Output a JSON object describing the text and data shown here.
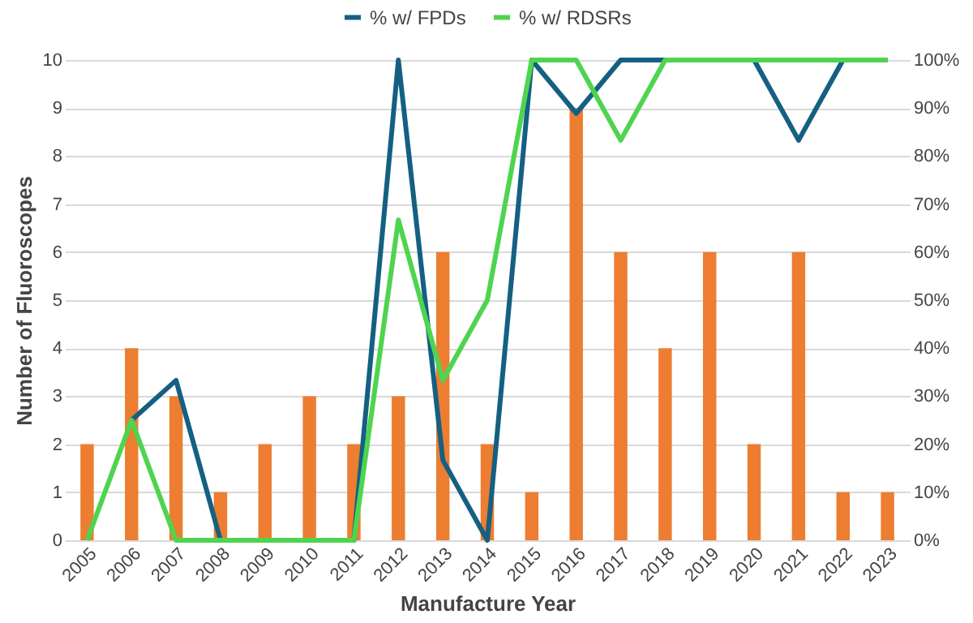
{
  "chart_data": {
    "type": "bar",
    "xlabel": "Manufacture Year",
    "ylabel": "Number of Fluoroscopes",
    "categories": [
      "2005",
      "2006",
      "2007",
      "2008",
      "2009",
      "2010",
      "2011",
      "2012",
      "2013",
      "2014",
      "2015",
      "2016",
      "2017",
      "2018",
      "2019",
      "2020",
      "2021",
      "2022",
      "2023"
    ],
    "series": [
      {
        "color": "#ed7d31",
        "values": [
          2,
          4,
          3,
          1,
          2,
          3,
          2,
          3,
          6,
          2,
          1,
          9,
          6,
          4,
          6,
          2,
          6,
          1,
          1
        ]
      },
      {
        "name": "% w/ FPDs",
        "type": "line",
        "axis": "y2",
        "color": "#156082",
        "values": [
          null,
          25,
          33.3,
          0,
          0,
          0,
          0,
          100,
          16.7,
          0,
          100,
          88.9,
          100,
          100,
          100,
          100,
          83.3,
          100,
          100
        ]
      },
      {
        "name": "% w/ RDSRs",
        "type": "line",
        "axis": "y2",
        "color": "#4ed44e",
        "values": [
          0,
          25,
          0,
          0,
          0,
          0,
          0,
          66.7,
          33.3,
          50,
          100,
          100,
          83.3,
          100,
          100,
          100,
          100,
          100,
          100
        ]
      }
    ],
    "ylim": [
      0,
      10
    ],
    "yticks": [
      0,
      1,
      2,
      3,
      4,
      5,
      6,
      7,
      8,
      9,
      10
    ],
    "y2lim": [
      0,
      100
    ],
    "y2ticks": [
      {
        "value": 0,
        "label": "0%"
      },
      {
        "value": 10,
        "label": "10%"
      },
      {
        "value": 20,
        "label": "20%"
      },
      {
        "value": 30,
        "label": "30%"
      },
      {
        "value": 40,
        "label": "40%"
      },
      {
        "value": 50,
        "label": "50%"
      },
      {
        "value": 60,
        "label": "60%"
      },
      {
        "value": 70,
        "label": "70%"
      },
      {
        "value": 80,
        "label": "80%"
      },
      {
        "value": 90,
        "label": "90%"
      },
      {
        "value": 100,
        "label": "100%"
      }
    ],
    "grid": "y",
    "legend": "top",
    "marker": "none"
  }
}
